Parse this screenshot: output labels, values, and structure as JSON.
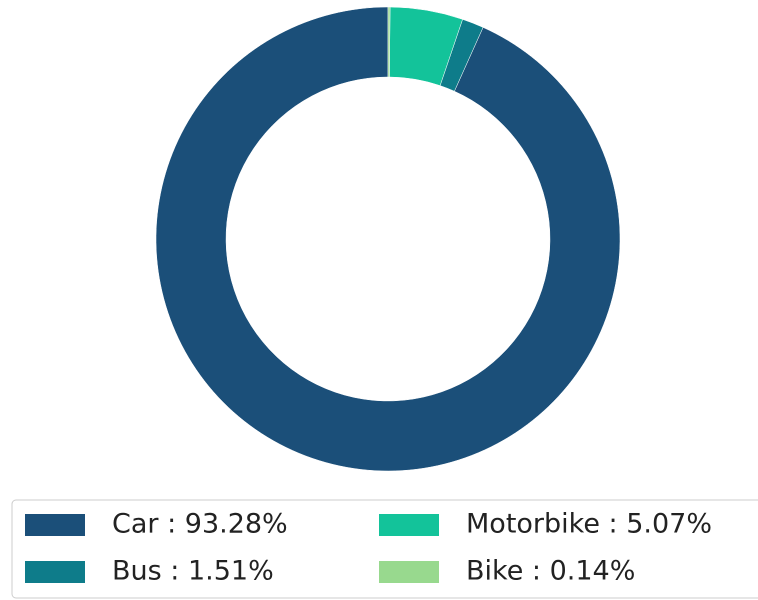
{
  "chart_data": {
    "type": "donut",
    "categories": [
      "Car",
      "Bus",
      "Motorbike",
      "Bike"
    ],
    "values": [
      93.28,
      1.51,
      5.07,
      0.14
    ],
    "legend_labels": [
      "Car : 93.28%",
      "Bus : 1.51%",
      "Motorbike : 5.07%",
      "Bike : 0.14%"
    ],
    "colors": [
      "#1b4f79",
      "#0e7c8a",
      "#13c39a",
      "#98d98e"
    ],
    "legend": "bottom"
  }
}
